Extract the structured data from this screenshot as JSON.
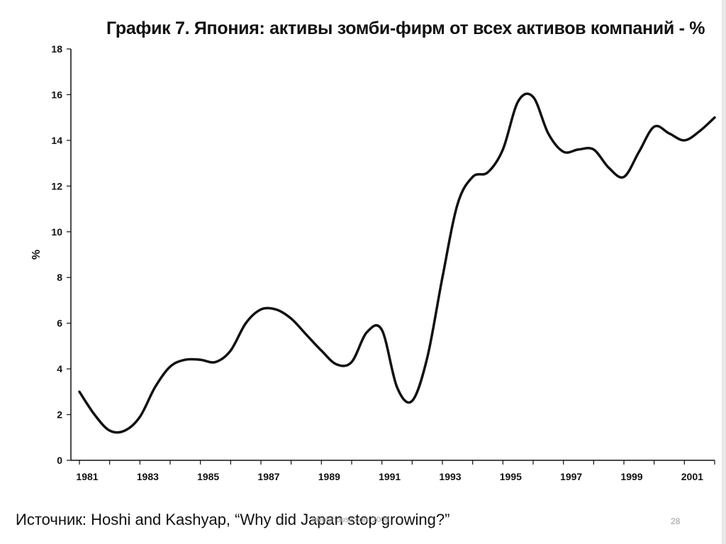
{
  "slide": {
    "source": "Источник: Hoshi and Kashyap, “Why did Japan stop growing?”",
    "footer": "hivelyhouse.com 2008",
    "page_number": "28"
  },
  "chart_data": {
    "type": "line",
    "title": "График 7. Япония: активы зомби-фирм от всех активов компаний - %",
    "xlabel": "",
    "ylabel": "%",
    "xlim": [
      1981,
      2002
    ],
    "ylim": [
      0,
      18
    ],
    "y_ticks": [
      0,
      2,
      4,
      6,
      8,
      10,
      12,
      14,
      16,
      18
    ],
    "x_ticks": [
      1981,
      1983,
      1985,
      1987,
      1989,
      1991,
      1993,
      1995,
      1997,
      1999,
      2001
    ],
    "grid": false,
    "legend": "none",
    "line_color": "#111111",
    "series": [
      {
        "x": [
          1981,
          1981.5,
          1982,
          1982.5,
          1983,
          1983.5,
          1984,
          1984.5,
          1985,
          1985.5,
          1986,
          1986.5,
          1987,
          1987.5,
          1988,
          1988.5,
          1989,
          1989.5,
          1990,
          1990.5,
          1991,
          1991.5,
          1992,
          1992.5,
          1993,
          1993.5,
          1994,
          1994.5,
          1995,
          1995.5,
          1996,
          1996.5,
          1997,
          1997.5,
          1998,
          1998.5,
          1999,
          1999.5,
          2000,
          2000.5,
          2001,
          2001.5,
          2002
        ],
        "values": [
          3.0,
          2.0,
          1.3,
          1.3,
          1.9,
          3.2,
          4.1,
          4.4,
          4.4,
          4.3,
          4.8,
          6.0,
          6.6,
          6.6,
          6.2,
          5.5,
          4.8,
          4.2,
          4.3,
          5.6,
          5.7,
          3.2,
          2.6,
          4.5,
          8.0,
          11.2,
          12.4,
          12.6,
          13.6,
          15.7,
          15.9,
          14.3,
          13.5,
          13.6,
          13.6,
          12.8,
          12.4,
          13.5,
          14.6,
          14.3,
          14.0,
          14.4,
          15.0
        ]
      }
    ]
  }
}
